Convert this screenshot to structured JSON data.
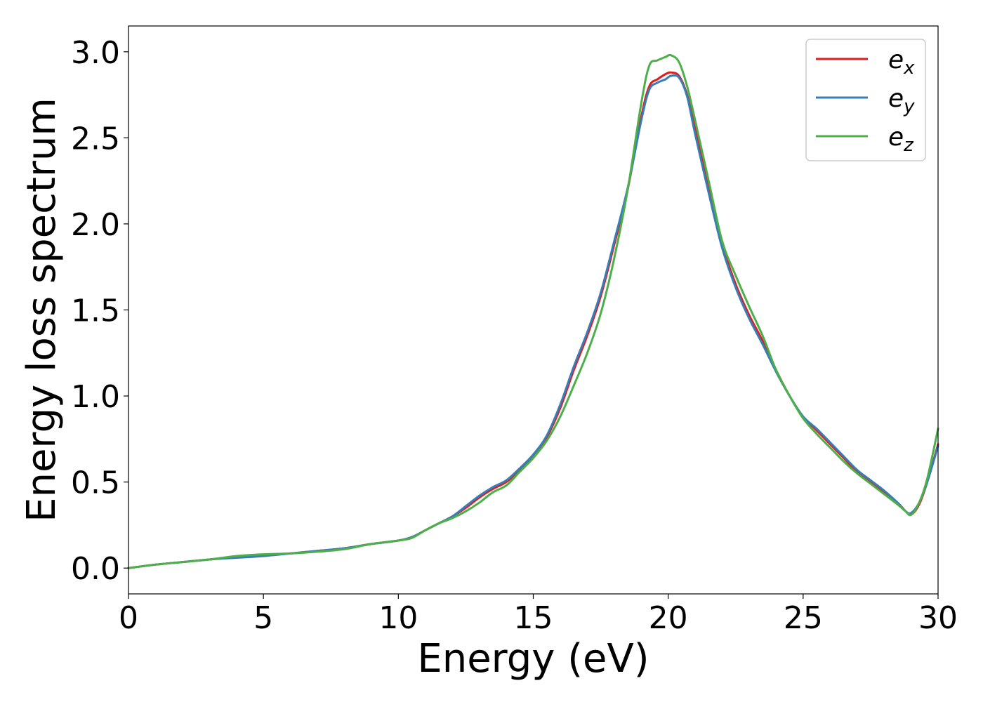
{
  "chart_data": {
    "type": "line",
    "xlabel": "Energy (eV)",
    "ylabel": "Energy loss spectrum",
    "xlim": [
      0,
      30
    ],
    "ylim": [
      -0.15,
      3.15
    ],
    "xticks": [
      0,
      5,
      10,
      15,
      20,
      25,
      30
    ],
    "xtick_labels": [
      "0",
      "5",
      "10",
      "15",
      "20",
      "25",
      "30"
    ],
    "yticks": [
      0.0,
      0.5,
      1.0,
      1.5,
      2.0,
      2.5,
      3.0
    ],
    "ytick_labels": [
      "0.0",
      "0.5",
      "1.0",
      "1.5",
      "2.0",
      "2.5",
      "3.0"
    ],
    "grid": false,
    "legend_position": "top-right",
    "x": [
      0,
      1,
      2,
      3,
      4,
      5,
      6,
      7,
      8,
      9,
      10,
      10.5,
      11,
      11.5,
      12,
      12.5,
      13,
      13.5,
      14,
      14.5,
      15,
      15.5,
      16,
      16.5,
      17,
      17.5,
      18,
      18.5,
      19,
      19.3,
      19.6,
      19.9,
      20.1,
      20.4,
      20.7,
      21,
      21.5,
      22,
      22.5,
      23,
      23.5,
      24,
      24.5,
      25,
      25.5,
      26,
      26.5,
      27,
      27.5,
      28,
      28.5,
      28.8,
      29,
      29.3,
      29.6,
      30
    ],
    "series": [
      {
        "name": "e",
        "subscript": "x",
        "color": "#e41a1c",
        "values": [
          0,
          0.02,
          0.035,
          0.05,
          0.065,
          0.075,
          0.085,
          0.1,
          0.115,
          0.14,
          0.16,
          0.18,
          0.22,
          0.26,
          0.3,
          0.35,
          0.41,
          0.46,
          0.5,
          0.57,
          0.65,
          0.76,
          0.93,
          1.15,
          1.35,
          1.58,
          1.88,
          2.2,
          2.62,
          2.8,
          2.84,
          2.87,
          2.88,
          2.86,
          2.75,
          2.55,
          2.2,
          1.88,
          1.65,
          1.47,
          1.32,
          1.15,
          1.0,
          0.88,
          0.8,
          0.72,
          0.64,
          0.56,
          0.5,
          0.44,
          0.38,
          0.33,
          0.31,
          0.37,
          0.5,
          0.72
        ]
      },
      {
        "name": "e",
        "subscript": "y",
        "color": "#377eb8",
        "values": [
          0,
          0.02,
          0.035,
          0.05,
          0.06,
          0.07,
          0.085,
          0.1,
          0.115,
          0.14,
          0.16,
          0.18,
          0.22,
          0.26,
          0.3,
          0.36,
          0.42,
          0.47,
          0.51,
          0.58,
          0.66,
          0.77,
          0.95,
          1.17,
          1.37,
          1.6,
          1.9,
          2.21,
          2.6,
          2.78,
          2.82,
          2.84,
          2.86,
          2.85,
          2.74,
          2.52,
          2.18,
          1.86,
          1.63,
          1.45,
          1.3,
          1.14,
          1.0,
          0.88,
          0.81,
          0.73,
          0.65,
          0.57,
          0.51,
          0.45,
          0.38,
          0.33,
          0.32,
          0.38,
          0.5,
          0.71
        ]
      },
      {
        "name": "e",
        "subscript": "z",
        "color": "#4daf4a",
        "values": [
          0,
          0.02,
          0.035,
          0.05,
          0.07,
          0.08,
          0.085,
          0.095,
          0.11,
          0.14,
          0.16,
          0.175,
          0.22,
          0.26,
          0.29,
          0.33,
          0.38,
          0.44,
          0.48,
          0.56,
          0.64,
          0.74,
          0.88,
          1.06,
          1.25,
          1.48,
          1.8,
          2.2,
          2.7,
          2.92,
          2.95,
          2.97,
          2.98,
          2.94,
          2.8,
          2.6,
          2.25,
          1.9,
          1.7,
          1.52,
          1.35,
          1.15,
          1.0,
          0.87,
          0.78,
          0.7,
          0.62,
          0.55,
          0.49,
          0.43,
          0.37,
          0.33,
          0.31,
          0.38,
          0.52,
          0.81
        ]
      }
    ]
  }
}
